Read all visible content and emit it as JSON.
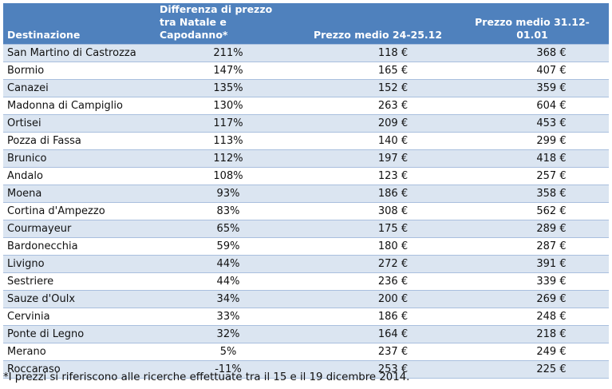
{
  "headers": {
    "destination": "Destinazione",
    "difference_line1": "Differenza di prezzo",
    "difference_line2": "tra Natale e Capodanno*",
    "price_christmas": "Prezzo medio 24-25.12",
    "price_newyear": "Prezzo medio 31.12-01.01"
  },
  "rows": [
    {
      "name": "San Martino di Castrozza",
      "diff": "211%",
      "p1": "118 €",
      "p2": "368 €"
    },
    {
      "name": "Bormio",
      "diff": "147%",
      "p1": "165 €",
      "p2": "407 €"
    },
    {
      "name": "Canazei",
      "diff": "135%",
      "p1": "152 €",
      "p2": "359 €"
    },
    {
      "name": "Madonna di Campiglio",
      "diff": "130%",
      "p1": "263 €",
      "p2": "604 €"
    },
    {
      "name": "Ortisei",
      "diff": "117%",
      "p1": "209 €",
      "p2": "453 €"
    },
    {
      "name": "Pozza di Fassa",
      "diff": "113%",
      "p1": "140 €",
      "p2": "299 €"
    },
    {
      "name": "Brunico",
      "diff": "112%",
      "p1": "197 €",
      "p2": "418 €"
    },
    {
      "name": "Andalo",
      "diff": "108%",
      "p1": "123 €",
      "p2": "257 €"
    },
    {
      "name": "Moena",
      "diff": "93%",
      "p1": "186 €",
      "p2": "358 €"
    },
    {
      "name": "Cortina d'Ampezzo",
      "diff": "83%",
      "p1": "308 €",
      "p2": "562 €"
    },
    {
      "name": "Courmayeur",
      "diff": "65%",
      "p1": "175 €",
      "p2": "289 €"
    },
    {
      "name": "Bardonecchia",
      "diff": "59%",
      "p1": "180 €",
      "p2": "287 €"
    },
    {
      "name": "Livigno",
      "diff": "44%",
      "p1": "272 €",
      "p2": "391 €"
    },
    {
      "name": "Sestriere",
      "diff": "44%",
      "p1": "236 €",
      "p2": "339 €"
    },
    {
      "name": "Sauze d'Oulx",
      "diff": "34%",
      "p1": "200 €",
      "p2": "269 €"
    },
    {
      "name": "Cervinia",
      "diff": "33%",
      "p1": "186 €",
      "p2": "248 €"
    },
    {
      "name": "Ponte di Legno",
      "diff": "32%",
      "p1": "164 €",
      "p2": "218 €"
    },
    {
      "name": "Merano",
      "diff": "5%",
      "p1": "237 €",
      "p2": "249 €"
    },
    {
      "name": "Roccaraso",
      "diff": "-11%",
      "p1": "253 €",
      "p2": "225 €"
    }
  ],
  "footnote": "*I prezzi si riferiscono alle ricerche effettuate tra il 15 e il 19 dicembre 2014.",
  "colors": {
    "header_bg": "#4f81bd",
    "row_band": "#dbe5f1",
    "row_border": "#a9bfde"
  }
}
